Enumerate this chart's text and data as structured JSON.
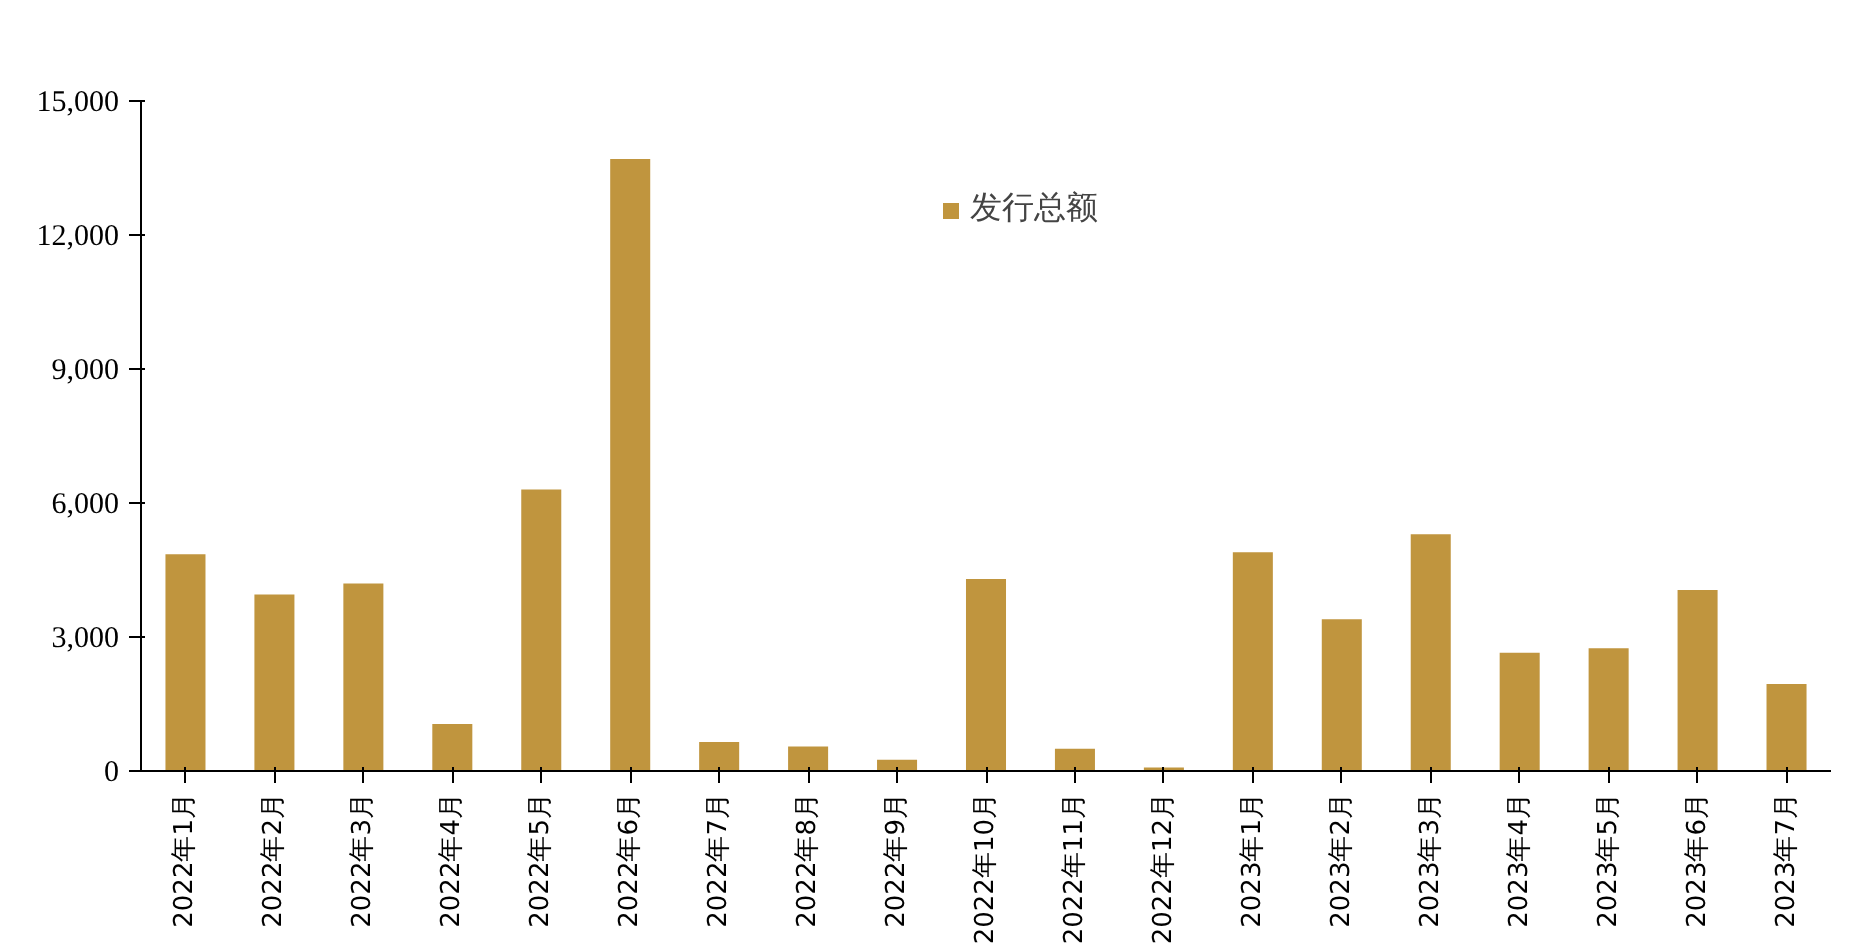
{
  "chart_data": {
    "type": "bar",
    "categories": [
      "2022年1月",
      "2022年2月",
      "2022年3月",
      "2022年4月",
      "2022年5月",
      "2022年6月",
      "2022年7月",
      "2022年8月",
      "2022年9月",
      "2022年10月",
      "2022年11月",
      "2022年12月",
      "2023年1月",
      "2023年2月",
      "2023年3月",
      "2023年4月",
      "2023年5月",
      "2023年6月",
      "2023年7月"
    ],
    "series": [
      {
        "name": "发行总额",
        "color": "#c0953e",
        "values": [
          4850,
          3950,
          4200,
          1050,
          6300,
          13700,
          650,
          550,
          250,
          4300,
          500,
          80,
          4900,
          3400,
          5300,
          2650,
          2750,
          4050,
          1950
        ]
      }
    ],
    "ylim": [
      0,
      15000
    ],
    "yticks": [
      {
        "value": 0,
        "label": "0"
      },
      {
        "value": 3000,
        "label": "3,000"
      },
      {
        "value": 6000,
        "label": "6,000"
      },
      {
        "value": 9000,
        "label": "9,000"
      },
      {
        "value": 12000,
        "label": "12,000"
      },
      {
        "value": 15000,
        "label": "15,000"
      }
    ],
    "grid": false,
    "legend": "top"
  }
}
